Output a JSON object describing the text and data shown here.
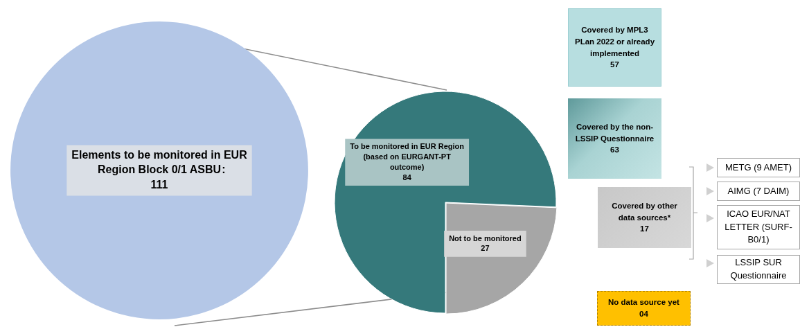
{
  "chart_data": [
    {
      "type": "pie",
      "categories": [
        "Elements to be monitored in EUR Region Block 0/1 ASBU"
      ],
      "values": [
        111
      ],
      "colors": [
        "#b4c7e7"
      ],
      "data_labels": true,
      "annotations": [
        ":"
      ]
    },
    {
      "type": "pie",
      "categories": [
        "To be monitored in EUR Region (based on EURGANT-PT outcome)",
        "Not to be monitored"
      ],
      "values": [
        84,
        27
      ],
      "colors": [
        "#35797b",
        "#a6a6a6"
      ],
      "data_labels": true
    },
    {
      "type": "other",
      "annotations": [
        "Covered by MPL3 PLan 2022 or already implemented\n57",
        "Covered by the non-LSSIP Questionnaire\n63",
        "Covered by other data sources*\n17",
        "METG (9 AMET)",
        "AIMG (7 DAIM)",
        "ICAO EUR/NAT LETTER (SURF-B0/1)",
        "LSSIP SUR Questionnaire",
        "No data source yet\n04"
      ]
    }
  ]
}
